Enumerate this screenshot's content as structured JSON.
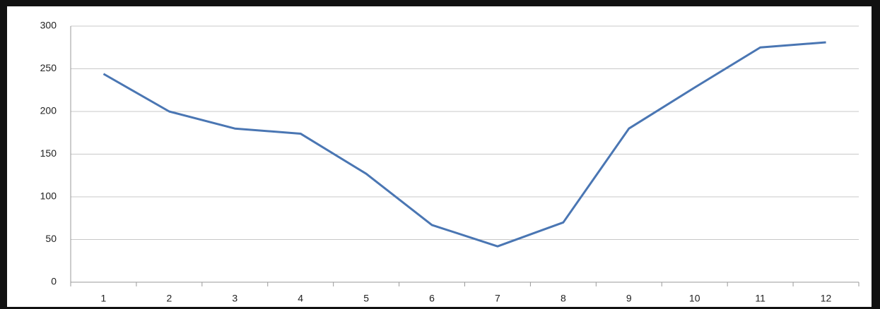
{
  "chart_data": {
    "type": "line",
    "categories": [
      "1",
      "2",
      "3",
      "4",
      "5",
      "6",
      "7",
      "8",
      "9",
      "10",
      "11",
      "12"
    ],
    "series": [
      {
        "color": "#4a76b3",
        "values": [
          244,
          200,
          180,
          174,
          127,
          67,
          42,
          70,
          180,
          228,
          275,
          281
        ]
      }
    ],
    "ylim": [
      0,
      300
    ],
    "yticks": [
      0,
      50,
      100,
      150,
      200,
      250,
      300
    ],
    "grid": true
  }
}
